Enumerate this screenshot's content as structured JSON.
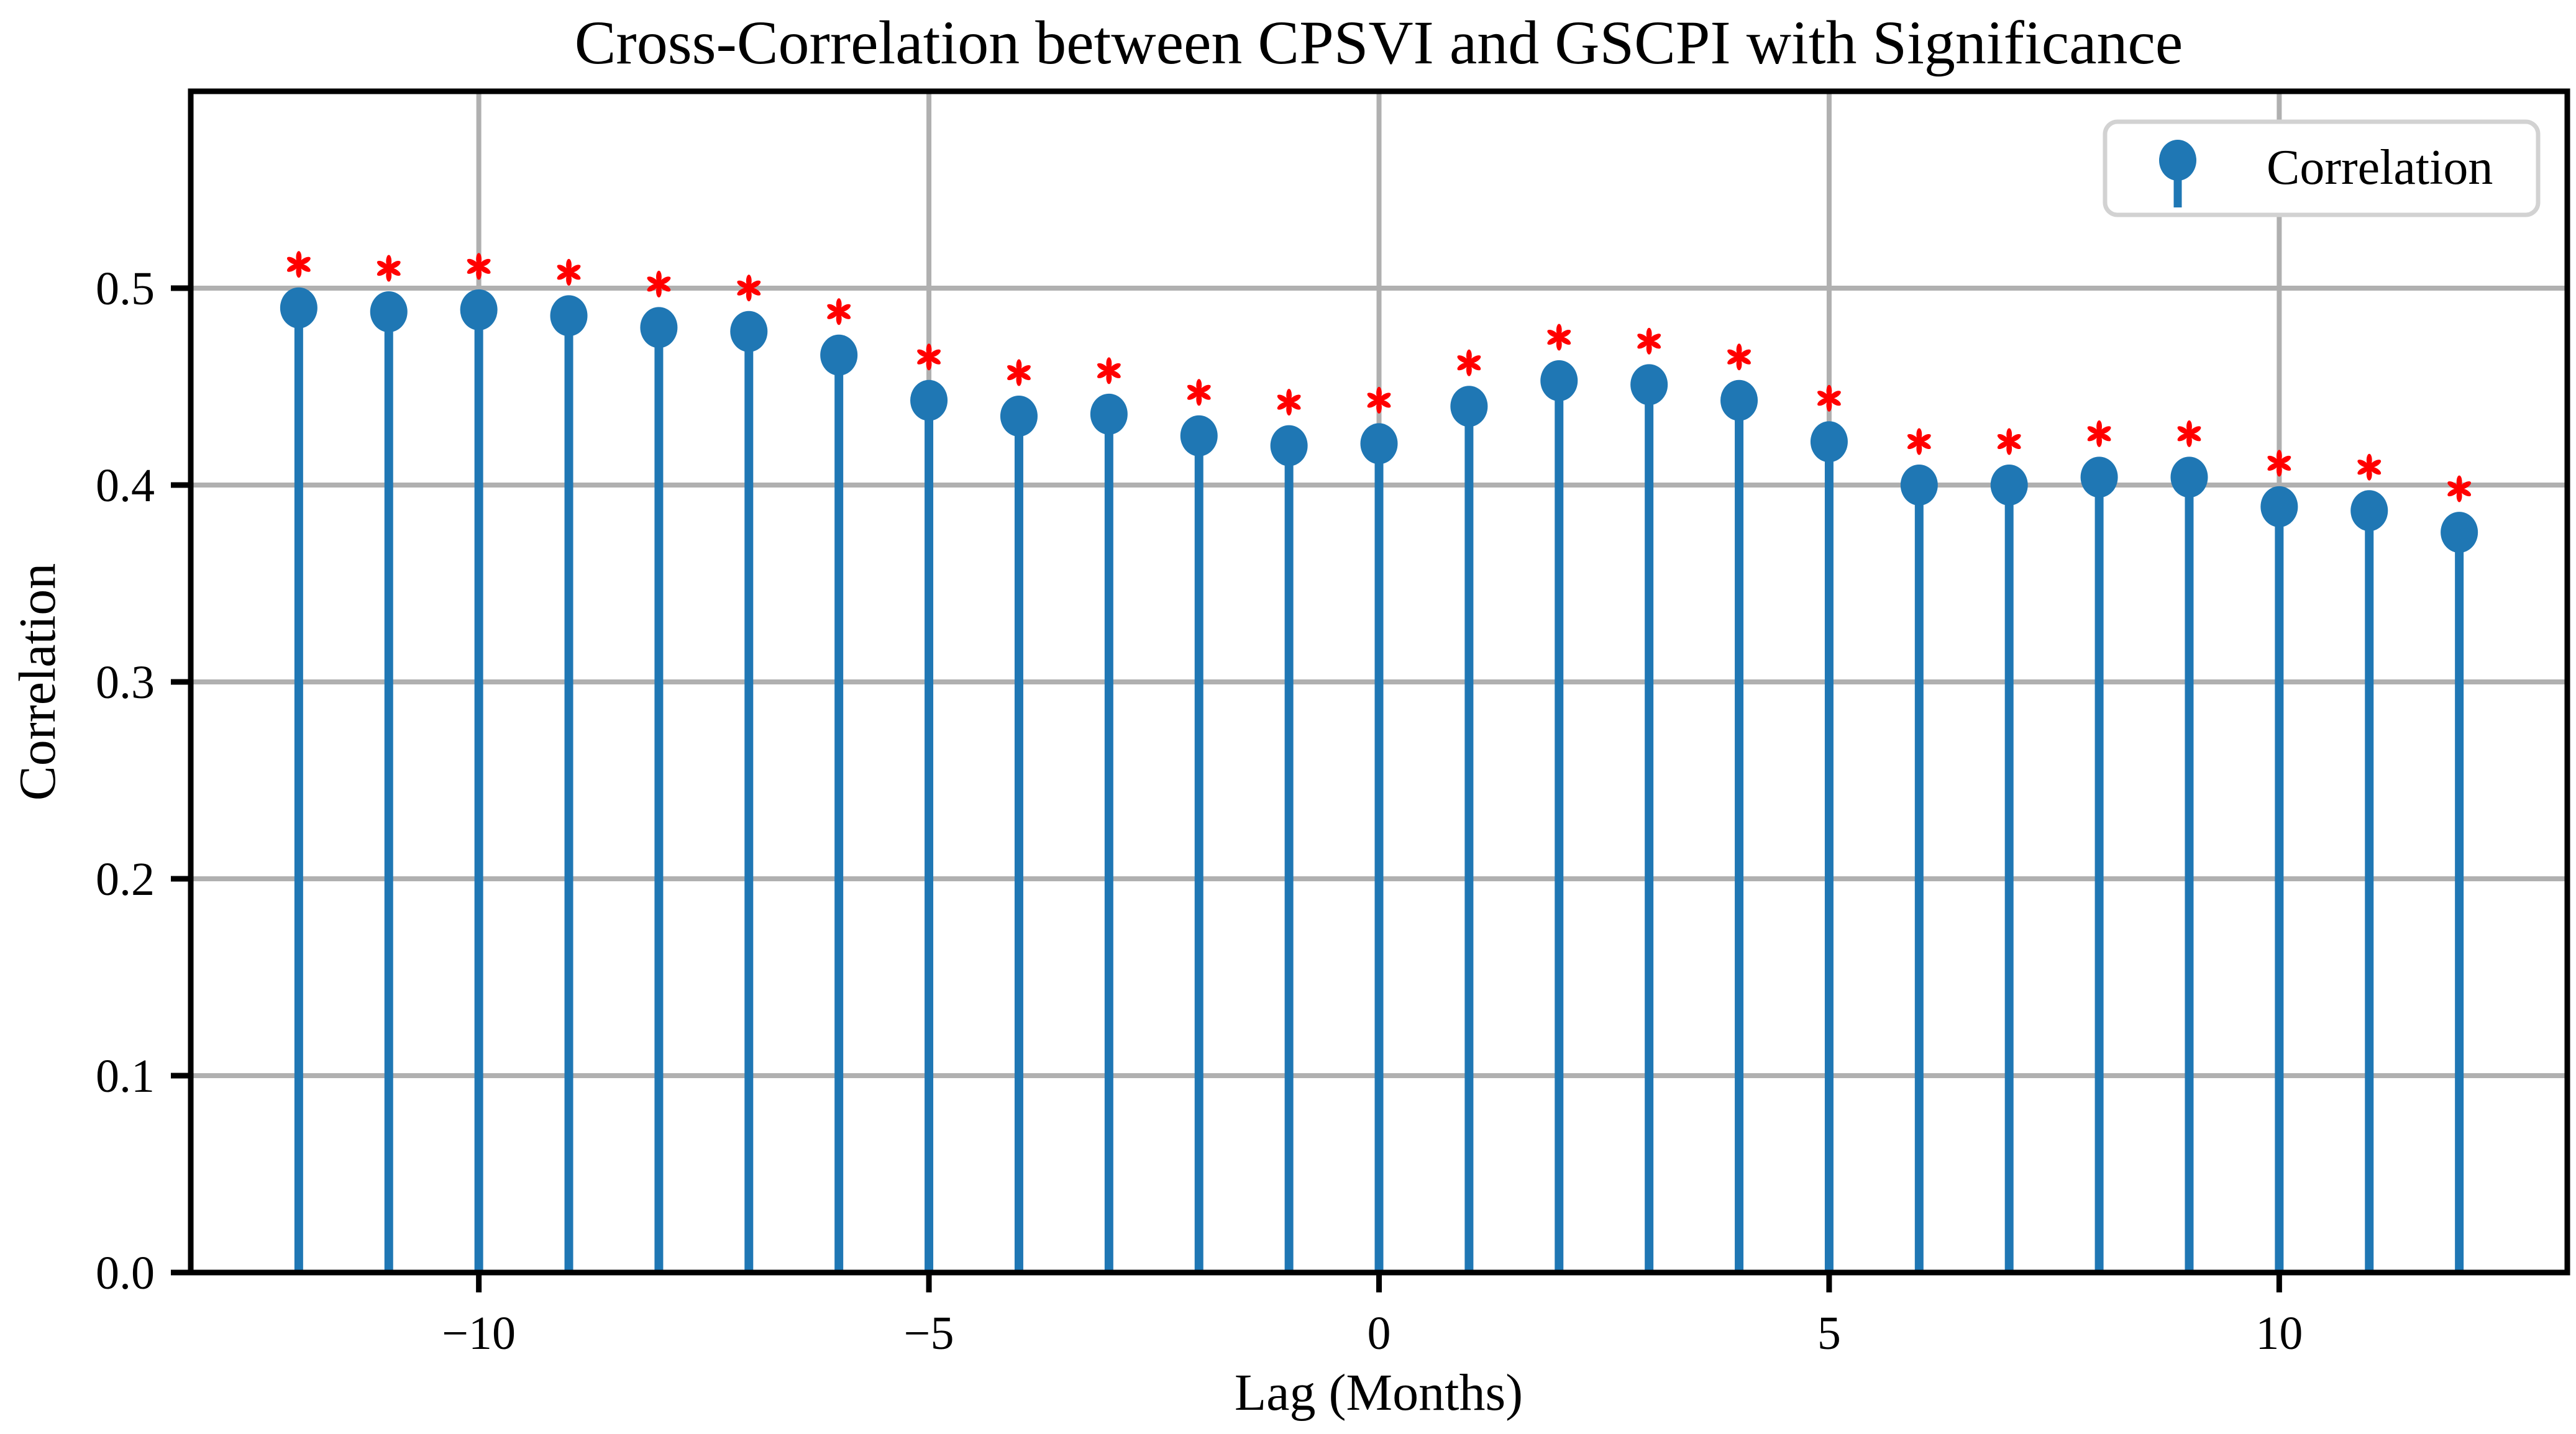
{
  "chart_data": {
    "type": "stem",
    "title": "Cross-Correlation between CPSVI and GSCPI with Significance",
    "xlabel": "Lag (Months)",
    "ylabel": "Correlation",
    "x": [
      -12,
      -11,
      -10,
      -9,
      -8,
      -7,
      -6,
      -5,
      -4,
      -3,
      -2,
      -1,
      0,
      1,
      2,
      3,
      4,
      5,
      6,
      7,
      8,
      9,
      10,
      11,
      12
    ],
    "series": [
      {
        "name": "Correlation",
        "values": [
          0.49,
          0.488,
          0.489,
          0.486,
          0.48,
          0.478,
          0.466,
          0.443,
          0.435,
          0.436,
          0.425,
          0.42,
          0.421,
          0.44,
          0.453,
          0.451,
          0.443,
          0.422,
          0.4,
          0.4,
          0.404,
          0.404,
          0.389,
          0.387,
          0.376
        ]
      }
    ],
    "significant": [
      true,
      true,
      true,
      true,
      true,
      true,
      true,
      true,
      true,
      true,
      true,
      true,
      true,
      true,
      true,
      true,
      true,
      true,
      true,
      true,
      true,
      true,
      true,
      true,
      true
    ],
    "significance_marker": "*",
    "significance_offset": 0.022,
    "xlim": [
      -13.2,
      13.2
    ],
    "ylim": [
      0,
      0.6
    ],
    "xticks": {
      "values": [
        -10,
        -5,
        0,
        5,
        10
      ],
      "labels": [
        "−10",
        "−5",
        "0",
        "5",
        "10"
      ]
    },
    "yticks": {
      "values": [
        0.0,
        0.1,
        0.2,
        0.3,
        0.4,
        0.5
      ],
      "labels": [
        "0.0",
        "0.1",
        "0.2",
        "0.3",
        "0.4",
        "0.5"
      ]
    },
    "grid": true,
    "legend": {
      "label": "Correlation",
      "position": "upper right"
    },
    "colors": {
      "stem": "#1f77b4",
      "marker": "#1f77b4",
      "significance": "#ff0000",
      "grid": "#b0b0b0",
      "axis": "#000000",
      "legend_border": "#d2d2d2",
      "background": "#ffffff"
    }
  }
}
